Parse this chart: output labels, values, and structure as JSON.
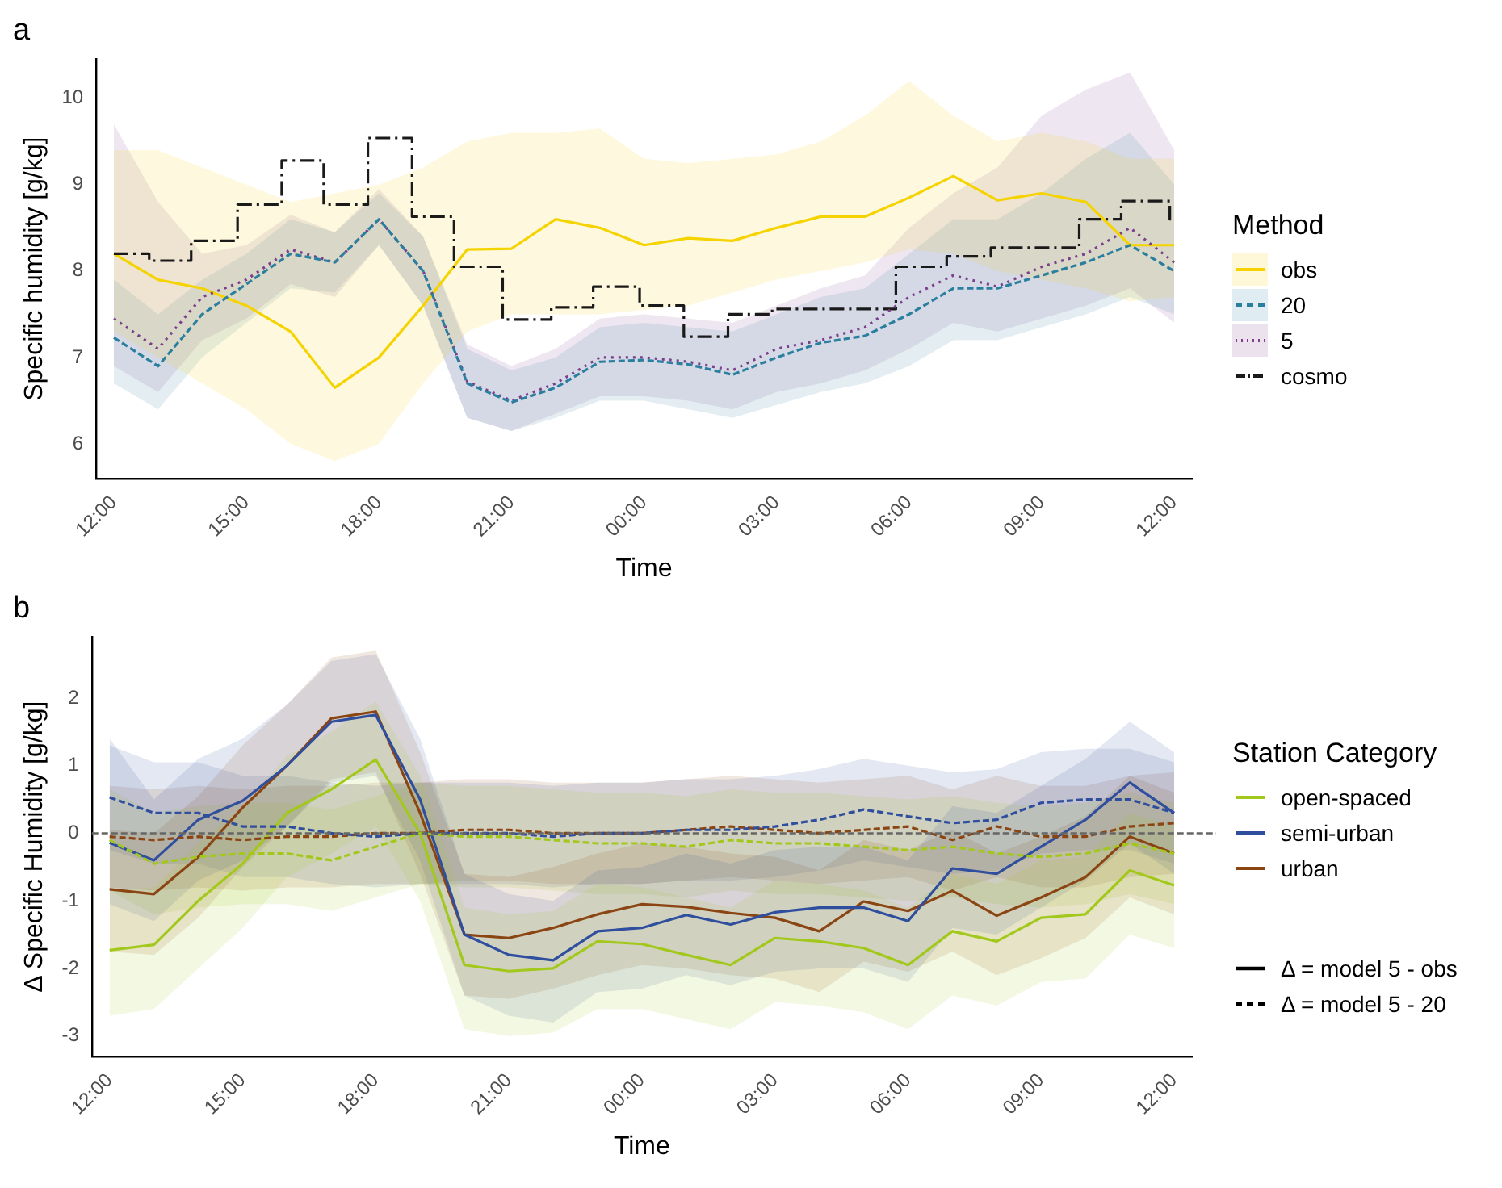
{
  "chart_data": [
    {
      "type": "line",
      "title": "a",
      "xlabel": "Time",
      "ylabel": "Specific humidity [g/kg]",
      "legend_title": "Method",
      "legend": "right",
      "x": [
        "2000-01-01T12:00",
        "2000-01-01T13:00",
        "2000-01-01T14:00",
        "2000-01-01T15:00",
        "2000-01-01T16:00",
        "2000-01-01T17:00",
        "2000-01-01T18:00",
        "2000-01-01T19:00",
        "2000-01-01T20:00",
        "2000-01-01T21:00",
        "2000-01-01T22:00",
        "2000-01-01T23:00",
        "2000-01-02T00:00",
        "2000-01-02T01:00",
        "2000-01-02T02:00",
        "2000-01-02T03:00",
        "2000-01-02T04:00",
        "2000-01-02T05:00",
        "2000-01-02T06:00",
        "2000-01-02T07:00",
        "2000-01-02T08:00",
        "2000-01-02T09:00",
        "2000-01-02T10:00",
        "2000-01-02T11:00",
        "2000-01-02T12:00"
      ],
      "xlim": [
        "2000-01-01T11:36",
        "2000-01-02T12:24"
      ],
      "xticks": [
        {
          "value": "2000-01-01T12:00",
          "label": "12:00"
        },
        {
          "value": "2000-01-01T15:00",
          "label": "15:00"
        },
        {
          "value": "2000-01-01T18:00",
          "label": "18:00"
        },
        {
          "value": "2000-01-01T21:00",
          "label": "21:00"
        },
        {
          "value": "2000-01-02T00:00",
          "label": "00:00"
        },
        {
          "value": "2000-01-02T03:00",
          "label": "03:00"
        },
        {
          "value": "2000-01-02T06:00",
          "label": "06:00"
        },
        {
          "value": "2000-01-02T09:00",
          "label": "09:00"
        },
        {
          "value": "2000-01-02T12:00",
          "label": "12:00"
        }
      ],
      "ylim": [
        5.6,
        10.45
      ],
      "yticks": [
        6,
        7,
        8,
        9,
        10
      ],
      "series": [
        {
          "name": "obs",
          "color": "#f5d300",
          "line_style": "solid",
          "values": [
            8.2,
            7.9,
            7.8,
            7.6,
            7.3,
            6.65,
            7.0,
            7.6,
            8.25,
            8.26,
            8.6,
            8.5,
            8.3,
            8.38,
            8.35,
            8.5,
            8.63,
            8.63,
            8.85,
            9.1,
            8.82,
            8.9,
            8.8,
            8.3,
            8.3
          ],
          "lower": [
            7.3,
            7.0,
            6.7,
            6.4,
            6.0,
            5.8,
            6.0,
            6.7,
            7.3,
            7.5,
            7.5,
            7.5,
            7.55,
            7.6,
            7.75,
            7.9,
            8.0,
            8.1,
            8.25,
            8.2,
            8.0,
            7.9,
            7.8,
            7.65,
            7.7
          ],
          "upper": [
            9.4,
            9.4,
            9.2,
            9.0,
            8.8,
            8.9,
            9.0,
            9.2,
            9.5,
            9.6,
            9.6,
            9.65,
            9.3,
            9.25,
            9.3,
            9.35,
            9.5,
            9.8,
            10.2,
            9.8,
            9.5,
            9.6,
            9.5,
            9.3,
            9.3
          ]
        },
        {
          "name": "20",
          "color": "#2b7f9e",
          "line_style": "dashed",
          "values": [
            7.23,
            6.9,
            7.5,
            7.85,
            8.2,
            8.1,
            8.6,
            8.0,
            6.7,
            6.48,
            6.65,
            6.95,
            6.97,
            6.92,
            6.8,
            7.0,
            7.17,
            7.25,
            7.5,
            7.8,
            7.8,
            7.95,
            8.1,
            8.3,
            8.0
          ],
          "lower": [
            6.7,
            6.4,
            7.0,
            7.4,
            7.8,
            7.75,
            8.3,
            7.6,
            6.3,
            6.15,
            6.3,
            6.5,
            6.5,
            6.4,
            6.3,
            6.45,
            6.6,
            6.7,
            6.9,
            7.2,
            7.2,
            7.35,
            7.5,
            7.7,
            7.5
          ],
          "upper": [
            7.9,
            7.5,
            7.9,
            8.2,
            8.6,
            8.45,
            8.9,
            8.4,
            7.1,
            6.85,
            7.0,
            7.35,
            7.4,
            7.35,
            7.3,
            7.5,
            7.7,
            7.8,
            8.2,
            8.6,
            8.6,
            8.9,
            9.3,
            9.6,
            9.0
          ]
        },
        {
          "name": "5",
          "color": "#7b3f8c",
          "line_style": "dotted",
          "values": [
            7.45,
            7.1,
            7.7,
            7.9,
            8.25,
            8.1,
            8.6,
            8.0,
            6.72,
            6.5,
            6.7,
            7.0,
            7.0,
            6.95,
            6.85,
            7.1,
            7.2,
            7.35,
            7.7,
            7.95,
            7.82,
            8.05,
            8.2,
            8.5,
            8.1
          ],
          "lower": [
            6.9,
            6.6,
            7.2,
            7.45,
            7.85,
            7.7,
            8.3,
            7.6,
            6.3,
            6.15,
            6.35,
            6.55,
            6.55,
            6.5,
            6.4,
            6.6,
            6.7,
            6.85,
            7.1,
            7.4,
            7.3,
            7.45,
            7.6,
            7.8,
            7.4
          ],
          "upper": [
            9.7,
            8.8,
            8.2,
            8.3,
            8.65,
            8.45,
            8.95,
            8.4,
            7.15,
            6.9,
            7.1,
            7.45,
            7.5,
            7.45,
            7.4,
            7.6,
            7.8,
            7.95,
            8.5,
            8.9,
            9.2,
            9.8,
            10.1,
            10.3,
            9.4
          ]
        },
        {
          "name": "cosmo",
          "type": "step",
          "color": "#1a1a1a",
          "line_style": "dashdot",
          "x": [
            "2000-01-01T12:00",
            "2000-01-01T12:48",
            "2000-01-01T13:45",
            "2000-01-01T14:48",
            "2000-01-01T15:48",
            "2000-01-01T16:45",
            "2000-01-01T17:45",
            "2000-01-01T18:45",
            "2000-01-01T19:42",
            "2000-01-01T20:48",
            "2000-01-01T21:54",
            "2000-01-01T22:51",
            "2000-01-01T23:54",
            "2000-01-02T00:54",
            "2000-01-02T01:54",
            "2000-01-02T02:54",
            "2000-01-02T05:42",
            "2000-01-02T06:51",
            "2000-01-02T07:51",
            "2000-01-02T09:51",
            "2000-01-02T10:48",
            "2000-01-02T11:54",
            "2000-01-02T12:00"
          ],
          "values": [
            8.2,
            8.12,
            8.35,
            8.77,
            9.28,
            8.77,
            9.54,
            8.63,
            8.05,
            7.44,
            7.58,
            7.82,
            7.6,
            7.24,
            7.5,
            7.56,
            8.05,
            8.17,
            8.27,
            8.6,
            8.81,
            8.6,
            8.6
          ]
        }
      ]
    },
    {
      "type": "line",
      "title": "b",
      "xlabel": "Time",
      "ylabel": "Δ Specific Humidity [g/kg]",
      "legend_title": "Station Category",
      "legend": "right",
      "annotations": [
        "Δ = model 5 - obs",
        "Δ = model 5 - 20"
      ],
      "x": [
        "2000-01-01T12:00",
        "2000-01-01T13:00",
        "2000-01-01T14:00",
        "2000-01-01T15:00",
        "2000-01-01T16:00",
        "2000-01-01T17:00",
        "2000-01-01T18:00",
        "2000-01-01T19:00",
        "2000-01-01T20:00",
        "2000-01-01T21:00",
        "2000-01-01T22:00",
        "2000-01-01T23:00",
        "2000-01-02T00:00",
        "2000-01-02T01:00",
        "2000-01-02T02:00",
        "2000-01-02T03:00",
        "2000-01-02T04:00",
        "2000-01-02T05:00",
        "2000-01-02T06:00",
        "2000-01-02T07:00",
        "2000-01-02T08:00",
        "2000-01-02T09:00",
        "2000-01-02T10:00",
        "2000-01-02T11:00",
        "2000-01-02T12:00"
      ],
      "xlim": [
        "2000-01-01T11:36",
        "2000-01-02T12:24"
      ],
      "xticks": [
        {
          "value": "2000-01-01T12:00",
          "label": "12:00"
        },
        {
          "value": "2000-01-01T15:00",
          "label": "15:00"
        },
        {
          "value": "2000-01-01T18:00",
          "label": "18:00"
        },
        {
          "value": "2000-01-01T21:00",
          "label": "21:00"
        },
        {
          "value": "2000-01-02T00:00",
          "label": "00:00"
        },
        {
          "value": "2000-01-02T03:00",
          "label": "03:00"
        },
        {
          "value": "2000-01-02T06:00",
          "label": "06:00"
        },
        {
          "value": "2000-01-02T09:00",
          "label": "09:00"
        },
        {
          "value": "2000-01-02T12:00",
          "label": "12:00"
        }
      ],
      "ylim": [
        -3.3,
        2.9
      ],
      "yticks": [
        -3,
        -2,
        -1,
        0,
        1,
        2
      ],
      "ref_lines": [
        {
          "axis": "y",
          "value": 0,
          "color": "#666666",
          "line_style": "dashed"
        }
      ],
      "series": [
        {
          "name": "open-spaced",
          "color": "#a3c81c",
          "line_style": "solid",
          "values": [
            -1.73,
            -1.65,
            -1.0,
            -0.45,
            0.3,
            0.65,
            1.09,
            0.0,
            -1.95,
            -2.04,
            -2.0,
            -1.6,
            -1.64,
            -1.8,
            -1.95,
            -1.55,
            -1.6,
            -1.7,
            -1.95,
            -1.45,
            -1.6,
            -1.25,
            -1.2,
            -0.55,
            -0.77
          ],
          "lower": [
            -2.7,
            -2.6,
            -2.0,
            -1.4,
            -0.65,
            -0.3,
            0.1,
            -1.0,
            -2.9,
            -3.0,
            -2.95,
            -2.6,
            -2.6,
            -2.75,
            -2.9,
            -2.5,
            -2.55,
            -2.65,
            -2.9,
            -2.4,
            -2.55,
            -2.2,
            -2.15,
            -1.5,
            -1.7
          ],
          "upper": [
            -0.85,
            -0.8,
            -0.15,
            0.4,
            1.15,
            1.5,
            1.95,
            0.85,
            -1.1,
            -1.2,
            -1.15,
            -0.75,
            -0.8,
            -0.95,
            -1.1,
            -0.7,
            -0.75,
            -0.85,
            -1.1,
            -0.6,
            -0.75,
            -0.4,
            -0.35,
            0.3,
            0.1
          ]
        },
        {
          "name": "semi-urban",
          "color": "#2f4f9e",
          "line_style": "solid",
          "values": [
            -0.14,
            -0.4,
            0.2,
            0.48,
            1.0,
            1.65,
            1.75,
            0.5,
            -1.5,
            -1.8,
            -1.88,
            -1.45,
            -1.4,
            -1.21,
            -1.35,
            -1.17,
            -1.1,
            -1.1,
            -1.3,
            -0.52,
            -0.6,
            -0.2,
            0.2,
            0.75,
            0.3
          ],
          "lower": [
            -1.05,
            -1.3,
            -0.7,
            -0.4,
            0.1,
            0.75,
            0.85,
            -0.4,
            -2.4,
            -2.7,
            -2.8,
            -2.35,
            -2.3,
            -2.1,
            -2.25,
            -2.05,
            -2.0,
            -2.0,
            -2.2,
            -1.4,
            -1.5,
            -1.1,
            -0.7,
            -0.15,
            -0.6
          ],
          "upper": [
            1.4,
            0.5,
            1.1,
            1.4,
            1.9,
            2.55,
            2.65,
            1.4,
            -0.6,
            -0.9,
            -1.0,
            -0.55,
            -0.5,
            -0.3,
            -0.45,
            -0.25,
            -0.2,
            -0.2,
            -0.4,
            0.4,
            0.3,
            0.7,
            1.1,
            1.65,
            1.2
          ]
        },
        {
          "name": "urban",
          "color": "#8b4513",
          "line_style": "solid",
          "values": [
            -0.83,
            -0.9,
            -0.35,
            0.38,
            1.0,
            1.7,
            1.8,
            0.3,
            -1.5,
            -1.55,
            -1.4,
            -1.2,
            -1.05,
            -1.09,
            -1.18,
            -1.25,
            -1.45,
            -1.01,
            -1.15,
            -0.85,
            -1.22,
            -0.95,
            -0.65,
            -0.05,
            -0.3
          ],
          "lower": [
            -1.75,
            -1.8,
            -1.25,
            -0.5,
            0.1,
            0.8,
            0.9,
            -0.6,
            -2.4,
            -2.45,
            -2.3,
            -2.1,
            -1.95,
            -2.0,
            -2.1,
            -2.15,
            -2.35,
            -1.9,
            -2.05,
            -1.75,
            -2.1,
            -1.85,
            -1.55,
            -0.95,
            -1.2
          ],
          "upper": [
            0.05,
            0.0,
            0.55,
            1.3,
            1.9,
            2.6,
            2.7,
            1.2,
            -0.6,
            -0.65,
            -0.5,
            -0.3,
            -0.15,
            -0.2,
            -0.3,
            -0.35,
            -0.55,
            -0.1,
            -0.25,
            0.05,
            -0.3,
            -0.05,
            0.25,
            0.85,
            0.6
          ]
        },
        {
          "color": "#a3c81c",
          "line_style": "dashed",
          "values": [
            -0.1,
            -0.45,
            -0.35,
            -0.3,
            -0.3,
            -0.4,
            -0.2,
            0.0,
            -0.05,
            -0.05,
            -0.1,
            -0.15,
            -0.15,
            -0.2,
            -0.1,
            -0.15,
            -0.15,
            -0.2,
            -0.25,
            -0.2,
            -0.3,
            -0.35,
            -0.3,
            -0.15,
            -0.3
          ],
          "lower": [
            -0.85,
            -1.2,
            -1.1,
            -1.05,
            -1.05,
            -1.15,
            -0.95,
            -0.75,
            -0.8,
            -0.8,
            -0.85,
            -0.9,
            -0.9,
            -0.95,
            -0.85,
            -0.9,
            -0.9,
            -0.95,
            -1.0,
            -0.95,
            -1.05,
            -1.1,
            -1.05,
            -0.9,
            -1.05
          ],
          "upper": [
            0.65,
            0.3,
            0.4,
            0.45,
            0.45,
            0.35,
            0.55,
            0.75,
            0.7,
            0.7,
            0.65,
            0.6,
            0.6,
            0.55,
            0.65,
            0.6,
            0.6,
            0.55,
            0.5,
            0.55,
            0.45,
            0.4,
            0.45,
            0.6,
            0.45
          ]
        },
        {
          "color": "#2f4f9e",
          "line_style": "dashed",
          "values": [
            0.53,
            0.3,
            0.3,
            0.1,
            0.1,
            0.0,
            -0.05,
            0.0,
            0.0,
            0.0,
            -0.05,
            0.0,
            0.0,
            0.05,
            0.05,
            0.1,
            0.2,
            0.35,
            0.25,
            0.15,
            0.2,
            0.45,
            0.5,
            0.5,
            0.3
          ],
          "lower": [
            -0.25,
            -0.45,
            -0.45,
            -0.65,
            -0.65,
            -0.75,
            -0.8,
            -0.75,
            -0.75,
            -0.75,
            -0.8,
            -0.75,
            -0.75,
            -0.7,
            -0.7,
            -0.65,
            -0.55,
            -0.4,
            -0.5,
            -0.6,
            -0.55,
            -0.3,
            -0.25,
            -0.25,
            -0.45
          ],
          "upper": [
            1.3,
            1.05,
            1.05,
            0.85,
            0.85,
            0.75,
            0.7,
            0.75,
            0.75,
            0.75,
            0.7,
            0.75,
            0.75,
            0.8,
            0.8,
            0.85,
            0.95,
            1.1,
            1.0,
            0.9,
            0.95,
            1.2,
            1.25,
            1.25,
            1.05
          ]
        },
        {
          "color": "#8b4513",
          "line_style": "dashed",
          "values": [
            -0.05,
            -0.1,
            -0.05,
            -0.1,
            -0.05,
            -0.05,
            0.0,
            0.0,
            0.05,
            0.05,
            0.0,
            0.0,
            0.0,
            0.05,
            0.1,
            0.05,
            0.0,
            0.05,
            0.1,
            -0.1,
            0.1,
            -0.05,
            -0.05,
            0.1,
            0.15
          ],
          "lower": [
            -0.8,
            -0.85,
            -0.8,
            -0.85,
            -0.8,
            -0.8,
            -0.75,
            -0.75,
            -0.7,
            -0.7,
            -0.75,
            -0.75,
            -0.75,
            -0.7,
            -0.65,
            -0.7,
            -0.75,
            -0.7,
            -0.65,
            -0.85,
            -0.65,
            -0.8,
            -0.8,
            -0.65,
            -0.6
          ],
          "upper": [
            0.7,
            0.65,
            0.7,
            0.65,
            0.7,
            0.7,
            0.75,
            0.75,
            0.8,
            0.8,
            0.75,
            0.75,
            0.75,
            0.8,
            0.85,
            0.8,
            0.75,
            0.8,
            0.85,
            0.65,
            0.85,
            0.7,
            0.7,
            0.85,
            0.9
          ]
        }
      ]
    }
  ]
}
